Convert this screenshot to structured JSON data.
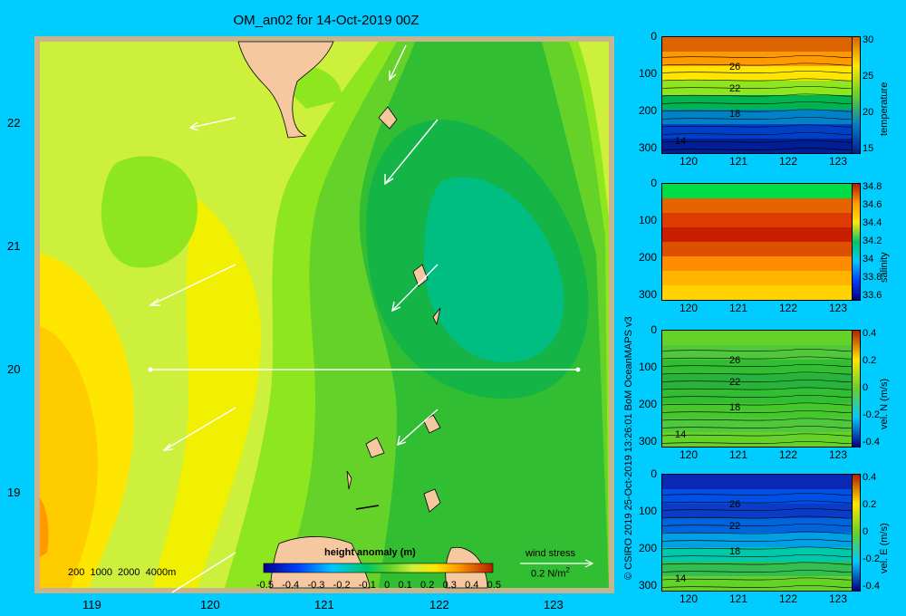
{
  "title": "OM_an02 for 14-Oct-2019 00Z",
  "map": {
    "lat_ticks": [
      "22",
      "21",
      "20",
      "19"
    ],
    "lon_ticks": [
      "119",
      "120",
      "121",
      "122",
      "123"
    ],
    "depth_legend": "200  1000  2000  4000m",
    "colorbar_label": "height anomaly (m)",
    "colorbar_ticks": [
      "-0.5",
      "-0.4",
      "-0.3",
      "-0.2",
      "-0.1",
      "0",
      "0.1",
      "0.2",
      "0.3",
      "0.4",
      "0.5"
    ],
    "wind_label": "wind stress",
    "wind_scale": "0.2 N/m",
    "wind_scale_exp": "2"
  },
  "credit": "© CSIRO 2019  25-Oct-2019 13:26:01 BoM OceanMAPS v3",
  "panels": [
    {
      "name": "temperature",
      "y_ticks": [
        "0",
        "100",
        "200",
        "300"
      ],
      "x_ticks": [
        "120",
        "121",
        "122",
        "123"
      ],
      "cbar_ticks": [
        "30",
        "25",
        "20",
        "15"
      ],
      "contours": [
        "26",
        "22",
        "18",
        "14"
      ],
      "label": "temperature"
    },
    {
      "name": "salinity",
      "y_ticks": [
        "0",
        "100",
        "200",
        "300"
      ],
      "x_ticks": [
        "120",
        "121",
        "122",
        "123"
      ],
      "cbar_ticks": [
        "34.8",
        "34.6",
        "34.4",
        "34.2",
        "34",
        "33.8",
        "33.6"
      ],
      "contours": [],
      "label": "salinity"
    },
    {
      "name": "velN",
      "y_ticks": [
        "0",
        "100",
        "200",
        "300"
      ],
      "x_ticks": [
        "120",
        "121",
        "122",
        "123"
      ],
      "cbar_ticks": [
        "0.4",
        "0.2",
        "0",
        "-0.2",
        "-0.4"
      ],
      "contours": [
        "26",
        "22",
        "18",
        "14"
      ],
      "label": "vel. N  (m/s)"
    },
    {
      "name": "velE",
      "y_ticks": [
        "0",
        "100",
        "200",
        "300"
      ],
      "x_ticks": [
        "120",
        "121",
        "122",
        "123"
      ],
      "cbar_ticks": [
        "0.4",
        "0.2",
        "0",
        "-0.2",
        "-0.4"
      ],
      "contours": [
        "26",
        "22",
        "18",
        "14"
      ],
      "label": "vel. E  (m/s)"
    }
  ]
}
